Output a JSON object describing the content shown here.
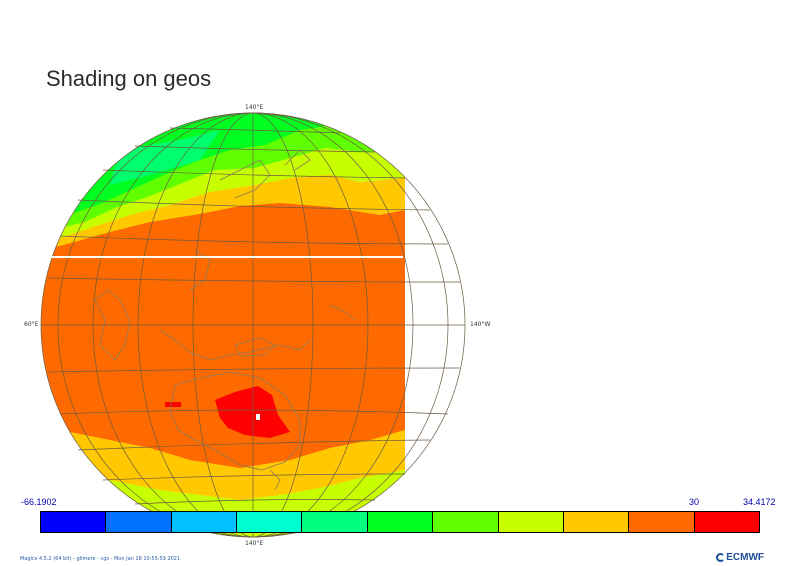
{
  "title": "Shading on geos",
  "labels": {
    "top": "140°E",
    "bottom": "140°E",
    "left": "60°E",
    "right": "140°W"
  },
  "legend": {
    "min": "-66.1902",
    "mid": "30",
    "max": "34.4172",
    "colors": [
      "#0000ff",
      "#0070ff",
      "#00c0ff",
      "#00ffd0",
      "#00ff80",
      "#00ff20",
      "#60ff00",
      "#c8ff00",
      "#ffc800",
      "#ff6a00",
      "#ff0000"
    ]
  },
  "footer": "Magics 4.5.2 (64 bit) - glimere - cgs - Mon Jan 18 10:55:59 2021",
  "logo": "ECMWF",
  "map_colors": {
    "warm": "#ff6a00",
    "mild": "#ffc800",
    "cool_yellow": "#c8ff00",
    "lime": "#60ff00",
    "green": "#00ff20",
    "teal": "#00ff80",
    "hot": "#ff0000",
    "coast": "#8a7a5a",
    "grid": "#6b5b43"
  }
}
